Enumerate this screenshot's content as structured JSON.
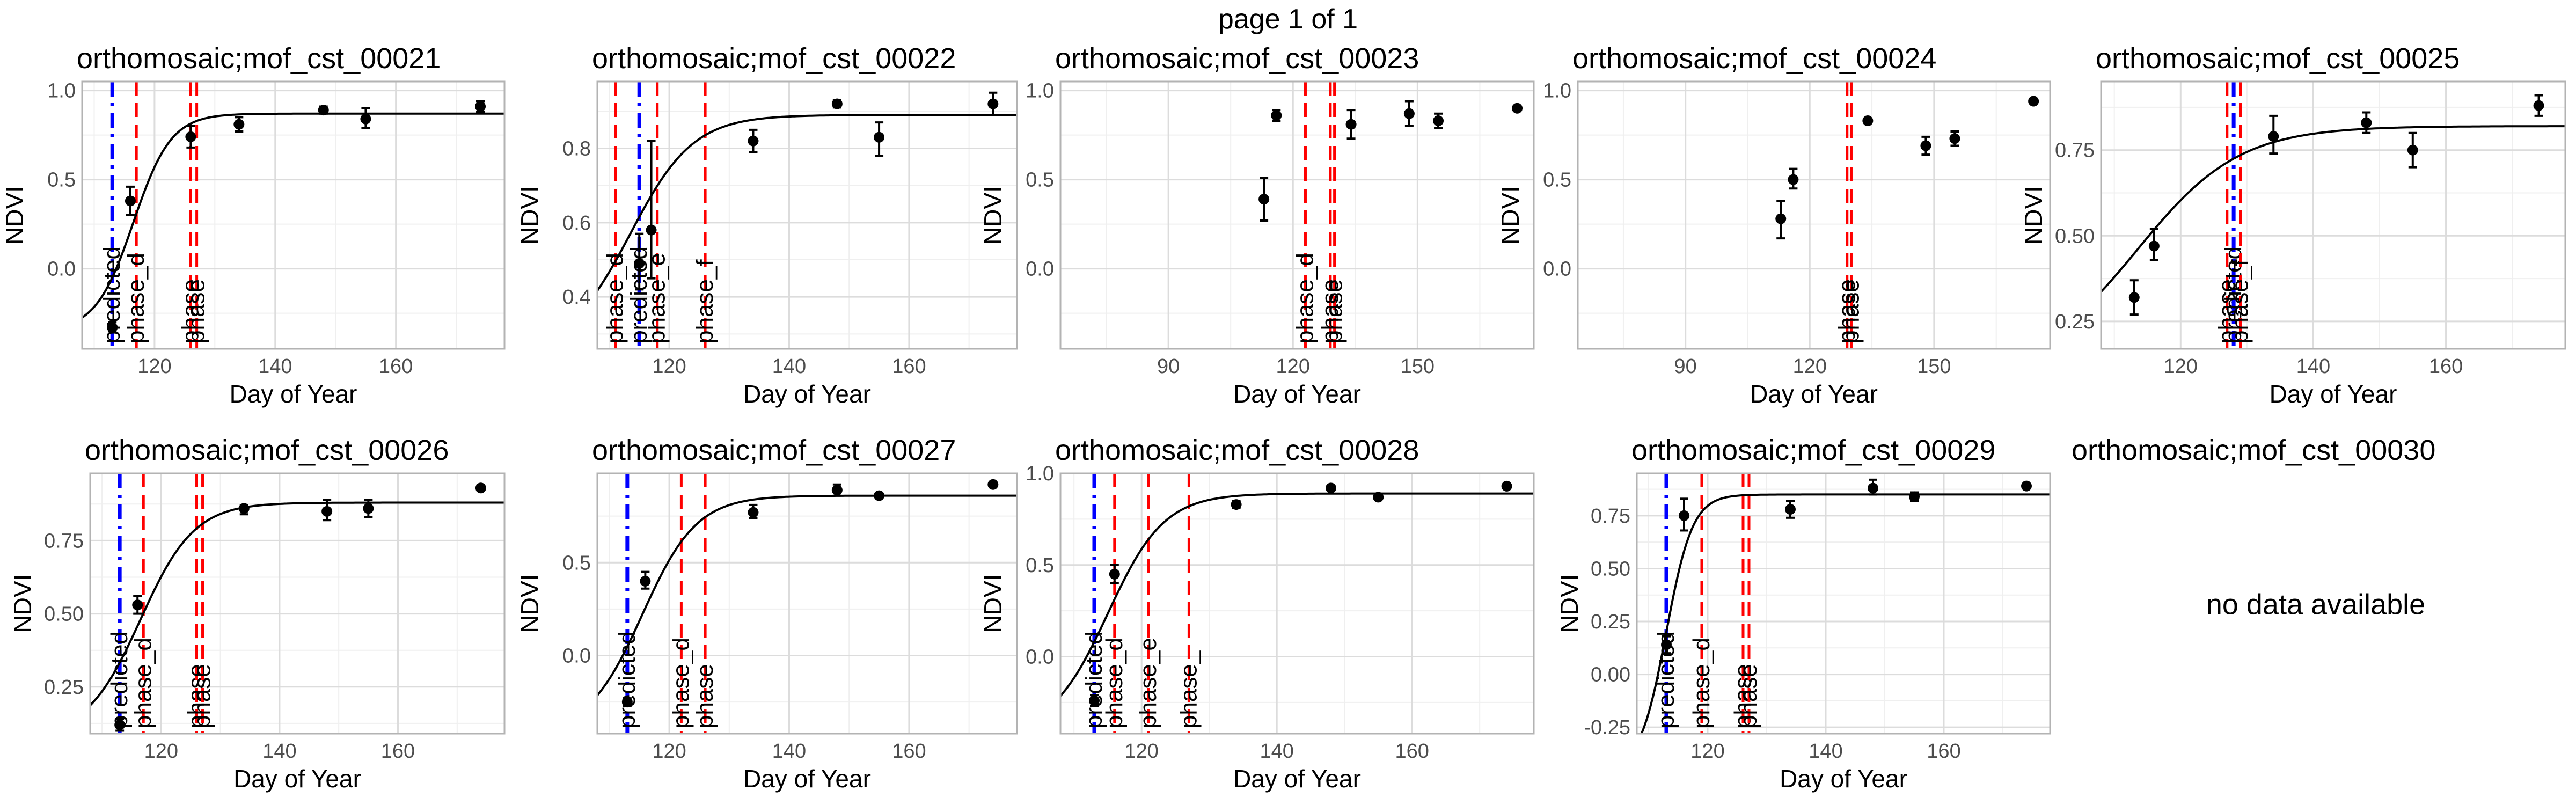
{
  "page": {
    "title": "page 1 of 1"
  },
  "style": {
    "panel_border": "#b3b3b3",
    "grid_major": "#dcdcdc",
    "grid_minor": "#efefef",
    "curve": "#000000",
    "points": "#000000",
    "phase_line": "#ff0000",
    "predicted_line": "#0000ff",
    "text": "#000000",
    "tick_text": "#4d4d4d"
  },
  "chart_data": [
    {
      "type": "scatter",
      "title": "orthomosaic;mof_cst_00021",
      "xlabel": "Day of Year",
      "ylabel": "NDVI",
      "xlim": [
        108,
        178
      ],
      "ylim": [
        -0.45,
        1.05
      ],
      "xticks": [
        120,
        140,
        160
      ],
      "yticks": [
        0.0,
        0.5,
        1.0
      ],
      "ytick_labels": [
        "0.0",
        "0.5",
        "1.0"
      ],
      "points": [
        {
          "x": 113,
          "y": -0.33,
          "lo": -0.35,
          "hi": -0.3
        },
        {
          "x": 116,
          "y": 0.38,
          "lo": 0.3,
          "hi": 0.46
        },
        {
          "x": 126,
          "y": 0.74,
          "lo": 0.68,
          "hi": 0.8
        },
        {
          "x": 134,
          "y": 0.81,
          "lo": 0.77,
          "hi": 0.85
        },
        {
          "x": 148,
          "y": 0.89,
          "lo": 0.87,
          "hi": 0.91
        },
        {
          "x": 155,
          "y": 0.84,
          "lo": 0.79,
          "hi": 0.9
        },
        {
          "x": 174,
          "y": 0.91,
          "lo": 0.88,
          "hi": 0.94
        }
      ],
      "curve": {
        "lower": -0.35,
        "upper": 0.87,
        "midpoint": 116.5,
        "rate": 0.32
      },
      "vlines": [
        {
          "x": 113,
          "kind": "predicted",
          "label": "predicted"
        },
        {
          "x": 117,
          "kind": "phase",
          "label": "phase_d"
        },
        {
          "x": 126,
          "kind": "phase",
          "label": "phase"
        },
        {
          "x": 127,
          "kind": "phase",
          "label": "phase"
        }
      ]
    },
    {
      "type": "scatter",
      "title": "orthomosaic;mof_cst_00022",
      "xlabel": "Day of Year",
      "ylabel": "NDVI",
      "xlim": [
        108,
        178
      ],
      "ylim": [
        0.26,
        0.98
      ],
      "xticks": [
        120,
        140,
        160
      ],
      "yticks": [
        0.4,
        0.6,
        0.8
      ],
      "ytick_labels": [
        "0.4",
        "0.6",
        "0.8"
      ],
      "points": [
        {
          "x": 115,
          "y": 0.49,
          "lo": 0.42,
          "hi": 0.57
        },
        {
          "x": 117,
          "y": 0.58,
          "lo": 0.45,
          "hi": 0.82
        },
        {
          "x": 134,
          "y": 0.82,
          "lo": 0.79,
          "hi": 0.85
        },
        {
          "x": 148,
          "y": 0.92,
          "lo": 0.91,
          "hi": 0.93
        },
        {
          "x": 155,
          "y": 0.83,
          "lo": 0.78,
          "hi": 0.87
        },
        {
          "x": 174,
          "y": 0.92,
          "lo": 0.89,
          "hi": 0.95
        }
      ],
      "curve": {
        "lower": 0.25,
        "upper": 0.89,
        "midpoint": 113.5,
        "rate": 0.19
      },
      "vlines": [
        {
          "x": 111,
          "kind": "phase",
          "label": "phase_d"
        },
        {
          "x": 115,
          "kind": "predicted",
          "label": "predicted"
        },
        {
          "x": 118,
          "kind": "phase",
          "label": "phase_e"
        },
        {
          "x": 126,
          "kind": "phase",
          "label": "phase_f"
        }
      ]
    },
    {
      "type": "scatter",
      "title": "orthomosaic;mof_cst_00023",
      "xlabel": "Day of Year",
      "ylabel": "NDVI",
      "xlim": [
        64,
        178
      ],
      "ylim": [
        -0.45,
        1.05
      ],
      "xticks": [
        90,
        120,
        150
      ],
      "yticks": [
        0.0,
        0.5,
        1.0
      ],
      "ytick_labels": [
        "0.0",
        "0.5",
        "1.0"
      ],
      "points": [
        {
          "x": 113,
          "y": 0.39,
          "lo": 0.27,
          "hi": 0.51
        },
        {
          "x": 116,
          "y": 0.86,
          "lo": 0.83,
          "hi": 0.89
        },
        {
          "x": 134,
          "y": 0.81,
          "lo": 0.73,
          "hi": 0.89
        },
        {
          "x": 148,
          "y": 0.87,
          "lo": 0.8,
          "hi": 0.94
        },
        {
          "x": 155,
          "y": 0.83,
          "lo": 0.79,
          "hi": 0.87
        },
        {
          "x": 174,
          "y": 0.9,
          "lo": 0.89,
          "hi": 0.91
        }
      ],
      "curve": null,
      "vlines": [
        {
          "x": 123,
          "kind": "phase",
          "label": "phase_d"
        },
        {
          "x": 129,
          "kind": "phase",
          "label": "phase"
        },
        {
          "x": 130,
          "kind": "phase",
          "label": "phase"
        }
      ]
    },
    {
      "type": "scatter",
      "title": "orthomosaic;mof_cst_00024",
      "xlabel": "Day of Year",
      "ylabel": "NDVI",
      "xlim": [
        64,
        178
      ],
      "ylim": [
        -0.45,
        1.05
      ],
      "xticks": [
        90,
        120,
        150
      ],
      "yticks": [
        0.0,
        0.5,
        1.0
      ],
      "ytick_labels": [
        "0.0",
        "0.5",
        "1.0"
      ],
      "points": [
        {
          "x": 113,
          "y": 0.28,
          "lo": 0.17,
          "hi": 0.38
        },
        {
          "x": 116,
          "y": 0.5,
          "lo": 0.45,
          "hi": 0.56
        },
        {
          "x": 134,
          "y": 0.83,
          "lo": 0.82,
          "hi": 0.84
        },
        {
          "x": 148,
          "y": 0.69,
          "lo": 0.64,
          "hi": 0.74
        },
        {
          "x": 155,
          "y": 0.73,
          "lo": 0.69,
          "hi": 0.77
        },
        {
          "x": 174,
          "y": 0.94,
          "lo": 0.93,
          "hi": 0.95
        }
      ],
      "curve": null,
      "vlines": [
        {
          "x": 129,
          "kind": "phase",
          "label": "phase"
        },
        {
          "x": 130,
          "kind": "phase",
          "label": "phase"
        }
      ]
    },
    {
      "type": "scatter",
      "title": "orthomosaic;mof_cst_00025",
      "xlabel": "Day of Year",
      "ylabel": "NDVI",
      "xlim": [
        108,
        178
      ],
      "ylim": [
        0.17,
        0.95
      ],
      "xticks": [
        120,
        140,
        160
      ],
      "yticks": [
        0.25,
        0.5,
        0.75
      ],
      "ytick_labels": [
        "0.25",
        "0.50",
        "0.75"
      ],
      "points": [
        {
          "x": 113,
          "y": 0.32,
          "lo": 0.27,
          "hi": 0.37
        },
        {
          "x": 116,
          "y": 0.47,
          "lo": 0.43,
          "hi": 0.52
        },
        {
          "x": 134,
          "y": 0.79,
          "lo": 0.74,
          "hi": 0.85
        },
        {
          "x": 148,
          "y": 0.83,
          "lo": 0.8,
          "hi": 0.86
        },
        {
          "x": 155,
          "y": 0.75,
          "lo": 0.7,
          "hi": 0.8
        },
        {
          "x": 174,
          "y": 0.88,
          "lo": 0.85,
          "hi": 0.91
        }
      ],
      "curve": {
        "lower": 0.1,
        "upper": 0.82,
        "midpoint": 113.5,
        "rate": 0.13
      },
      "vlines": [
        {
          "x": 127,
          "kind": "phase",
          "label": "phase"
        },
        {
          "x": 128,
          "kind": "predicted",
          "label": "predicted"
        },
        {
          "x": 129,
          "kind": "phase",
          "label": "phase_f"
        }
      ]
    },
    {
      "type": "scatter",
      "title": "orthomosaic;mof_cst_00026",
      "xlabel": "Day of Year",
      "ylabel": "NDVI",
      "xlim": [
        108,
        178
      ],
      "ylim": [
        0.09,
        0.98
      ],
      "xticks": [
        120,
        140,
        160
      ],
      "yticks": [
        0.25,
        0.5,
        0.75
      ],
      "ytick_labels": [
        "0.25",
        "0.50",
        "0.75"
      ],
      "points": [
        {
          "x": 113,
          "y": 0.12,
          "lo": 0.1,
          "hi": 0.14
        },
        {
          "x": 116,
          "y": 0.53,
          "lo": 0.5,
          "hi": 0.56
        },
        {
          "x": 134,
          "y": 0.86,
          "lo": 0.84,
          "hi": 0.87
        },
        {
          "x": 148,
          "y": 0.85,
          "lo": 0.82,
          "hi": 0.89
        },
        {
          "x": 155,
          "y": 0.86,
          "lo": 0.83,
          "hi": 0.89
        },
        {
          "x": 174,
          "y": 0.93,
          "lo": 0.92,
          "hi": 0.94
        }
      ],
      "curve": {
        "lower": 0.08,
        "upper": 0.88,
        "midpoint": 116.5,
        "rate": 0.22
      },
      "vlines": [
        {
          "x": 113,
          "kind": "predicted",
          "label": "predicted"
        },
        {
          "x": 117,
          "kind": "phase",
          "label": "phase_d"
        },
        {
          "x": 126,
          "kind": "phase",
          "label": "phase"
        },
        {
          "x": 127,
          "kind": "phase",
          "label": "phase"
        }
      ]
    },
    {
      "type": "scatter",
      "title": "orthomosaic;mof_cst_00027",
      "xlabel": "Day of Year",
      "ylabel": "NDVI",
      "xlim": [
        108,
        178
      ],
      "ylim": [
        -0.42,
        0.98
      ],
      "xticks": [
        120,
        140,
        160
      ],
      "yticks": [
        0.0,
        0.5
      ],
      "ytick_labels": [
        "0.0",
        "0.5"
      ],
      "points": [
        {
          "x": 113,
          "y": -0.25,
          "lo": -0.27,
          "hi": -0.23
        },
        {
          "x": 116,
          "y": 0.4,
          "lo": 0.36,
          "hi": 0.45
        },
        {
          "x": 134,
          "y": 0.77,
          "lo": 0.74,
          "hi": 0.81
        },
        {
          "x": 148,
          "y": 0.89,
          "lo": 0.86,
          "hi": 0.92
        },
        {
          "x": 155,
          "y": 0.86,
          "lo": 0.85,
          "hi": 0.87
        },
        {
          "x": 174,
          "y": 0.92,
          "lo": 0.91,
          "hi": 0.93
        }
      ],
      "curve": {
        "lower": -0.42,
        "upper": 0.86,
        "midpoint": 115.5,
        "rate": 0.22
      },
      "vlines": [
        {
          "x": 113,
          "kind": "predicted",
          "label": "predicted"
        },
        {
          "x": 122,
          "kind": "phase",
          "label": "phase_d"
        },
        {
          "x": 126,
          "kind": "phase",
          "label": "phase"
        }
      ]
    },
    {
      "type": "scatter",
      "title": "orthomosaic;mof_cst_00028",
      "xlabel": "Day of Year",
      "ylabel": "NDVI",
      "xlim": [
        108,
        178
      ],
      "ylim": [
        -0.42,
        1.0
      ],
      "xticks": [
        120,
        140,
        160
      ],
      "yticks": [
        0.0,
        0.5,
        1.0
      ],
      "ytick_labels": [
        "0.0",
        "0.5",
        "1.0"
      ],
      "points": [
        {
          "x": 113,
          "y": -0.24,
          "lo": -0.27,
          "hi": -0.21
        },
        {
          "x": 116,
          "y": 0.45,
          "lo": 0.4,
          "hi": 0.5
        },
        {
          "x": 134,
          "y": 0.83,
          "lo": 0.81,
          "hi": 0.85
        },
        {
          "x": 148,
          "y": 0.92,
          "lo": 0.91,
          "hi": 0.93
        },
        {
          "x": 155,
          "y": 0.87,
          "lo": 0.86,
          "hi": 0.88
        },
        {
          "x": 174,
          "y": 0.93,
          "lo": 0.92,
          "hi": 0.94
        }
      ],
      "curve": {
        "lower": -0.42,
        "upper": 0.89,
        "midpoint": 115.0,
        "rate": 0.24
      },
      "vlines": [
        {
          "x": 113,
          "kind": "predicted",
          "label": "predicted"
        },
        {
          "x": 116,
          "kind": "phase",
          "label": "phase_d"
        },
        {
          "x": 121,
          "kind": "phase",
          "label": "phase_e"
        },
        {
          "x": 127,
          "kind": "phase",
          "label": "phase_"
        }
      ]
    },
    {
      "type": "scatter",
      "title": "orthomosaic;mof_cst_00029",
      "xlabel": "Day of Year",
      "ylabel": "NDVI",
      "xlim": [
        108,
        178
      ],
      "ylim": [
        -0.28,
        0.95
      ],
      "xticks": [
        120,
        140,
        160
      ],
      "yticks": [
        -0.25,
        0.0,
        0.25,
        0.5,
        0.75
      ],
      "ytick_labels": [
        "-0.25",
        "0.00",
        "0.25",
        "0.50",
        "0.75"
      ],
      "points": [
        {
          "x": 113,
          "y": 0.14,
          "lo": 0.1,
          "hi": 0.18
        },
        {
          "x": 116,
          "y": 0.75,
          "lo": 0.68,
          "hi": 0.83
        },
        {
          "x": 134,
          "y": 0.78,
          "lo": 0.74,
          "hi": 0.82
        },
        {
          "x": 148,
          "y": 0.88,
          "lo": 0.85,
          "hi": 0.92
        },
        {
          "x": 155,
          "y": 0.84,
          "lo": 0.82,
          "hi": 0.86
        },
        {
          "x": 174,
          "y": 0.89,
          "lo": 0.88,
          "hi": 0.9
        }
      ],
      "curve": {
        "lower": -0.45,
        "upper": 0.85,
        "midpoint": 113.0,
        "rate": 0.45
      },
      "vlines": [
        {
          "x": 113,
          "kind": "predicted",
          "label": "predicted"
        },
        {
          "x": 119,
          "kind": "phase",
          "label": "phase_d"
        },
        {
          "x": 126,
          "kind": "phase",
          "label": "phase"
        },
        {
          "x": 127,
          "kind": "phase",
          "label": "phase"
        }
      ]
    },
    {
      "type": "table",
      "title": "orthomosaic;mof_cst_00030",
      "message": "no data available"
    }
  ]
}
